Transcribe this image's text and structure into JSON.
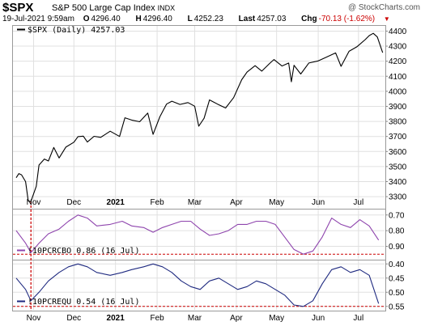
{
  "header": {
    "symbol": "$SPX",
    "name": "S&P 500 Large Cap Index",
    "exchange": "INDX",
    "credit": "@ StockCharts.com",
    "date": "19-Jul-2021 9:59am",
    "open_label": "O",
    "open": "4296.40",
    "high_label": "H",
    "high": "4296.40",
    "low_label": "L",
    "low": "4252.23",
    "last_label": "Last",
    "last": "4257.03",
    "chg_label": "Chg",
    "chg": "-70.13 (-1.62%)",
    "chg_color": "#cc0000"
  },
  "chart_data": [
    {
      "type": "line",
      "legend": "$SPX (Daily) 4257.03",
      "color": "#000000",
      "ylim": [
        3220,
        4440
      ],
      "yticks": [
        3300,
        3400,
        3500,
        3600,
        3700,
        3800,
        3900,
        4000,
        4100,
        4200,
        4300,
        4400
      ],
      "x_months": [
        "Nov",
        "Dec",
        "2021",
        "Feb",
        "Mar",
        "Apr",
        "May",
        "Jun",
        "Jul"
      ],
      "series": [
        {
          "x": [
            "2020-10-19",
            "2020-10-21",
            "2020-10-23",
            "2020-10-26",
            "2020-10-28",
            "2020-10-30",
            "2020-11-03",
            "2020-11-05",
            "2020-11-09",
            "2020-11-12",
            "2020-11-16",
            "2020-11-20",
            "2020-11-25",
            "2020-12-01",
            "2020-12-04",
            "2020-12-08",
            "2020-12-11",
            "2020-12-16",
            "2020-12-21",
            "2020-12-28",
            "2021-01-04",
            "2021-01-08",
            "2021-01-13",
            "2021-01-19",
            "2021-01-25",
            "2021-01-29",
            "2021-02-03",
            "2021-02-08",
            "2021-02-12",
            "2021-02-18",
            "2021-02-24",
            "2021-03-01",
            "2021-03-04",
            "2021-03-08",
            "2021-03-12",
            "2021-03-18",
            "2021-03-24",
            "2021-03-30",
            "2021-04-05",
            "2021-04-09",
            "2021-04-15",
            "2021-04-20",
            "2021-04-26",
            "2021-04-29",
            "2021-05-05",
            "2021-05-10",
            "2021-05-12",
            "2021-05-14",
            "2021-05-19",
            "2021-05-25",
            "2021-06-01",
            "2021-06-07",
            "2021-06-14",
            "2021-06-18",
            "2021-06-24",
            "2021-06-30",
            "2021-07-06",
            "2021-07-09",
            "2021-07-12",
            "2021-07-15",
            "2021-07-19"
          ],
          "y": [
            3426,
            3453,
            3445,
            3400,
            3271,
            3269,
            3369,
            3510,
            3550,
            3537,
            3627,
            3557,
            3629,
            3662,
            3699,
            3702,
            3663,
            3701,
            3694,
            3735,
            3700,
            3824,
            3809,
            3798,
            3855,
            3714,
            3830,
            3915,
            3934,
            3913,
            3925,
            3901,
            3768,
            3821,
            3943,
            3915,
            3889,
            3958,
            4077,
            4128,
            4170,
            4134,
            4187,
            4211,
            4168,
            4188,
            4063,
            4173,
            4115,
            4188,
            4202,
            4226,
            4255,
            4166,
            4266,
            4297,
            4343,
            4370,
            4385,
            4361,
            4257
          ]
        }
      ]
    },
    {
      "type": "line",
      "legend": "!10PCRCBO 0.86 (16 Jul)",
      "color": "#8e44ad",
      "inverted": true,
      "ylim": [
        0.66,
        0.985
      ],
      "yticks": [
        "0.70",
        "0.80",
        "0.90"
      ],
      "threshold_color": "#cc0000",
      "series": [
        {
          "x": [
            "2020-10-19",
            "2020-10-26",
            "2020-10-30",
            "2020-11-05",
            "2020-11-12",
            "2020-11-20",
            "2020-11-27",
            "2020-12-04",
            "2020-12-11",
            "2020-12-18",
            "2020-12-28",
            "2021-01-06",
            "2021-01-13",
            "2021-01-22",
            "2021-01-29",
            "2021-02-05",
            "2021-02-12",
            "2021-02-19",
            "2021-02-26",
            "2021-03-05",
            "2021-03-12",
            "2021-03-19",
            "2021-03-26",
            "2021-04-02",
            "2021-04-09",
            "2021-04-16",
            "2021-04-23",
            "2021-04-30",
            "2021-05-07",
            "2021-05-14",
            "2021-05-21",
            "2021-05-28",
            "2021-06-04",
            "2021-06-11",
            "2021-06-18",
            "2021-06-25",
            "2021-07-02",
            "2021-07-09",
            "2021-07-16"
          ],
          "y": [
            0.8,
            0.88,
            0.94,
            0.88,
            0.82,
            0.79,
            0.74,
            0.7,
            0.72,
            0.77,
            0.76,
            0.74,
            0.77,
            0.78,
            0.81,
            0.78,
            0.76,
            0.74,
            0.74,
            0.79,
            0.83,
            0.82,
            0.8,
            0.76,
            0.76,
            0.74,
            0.74,
            0.76,
            0.84,
            0.92,
            0.95,
            0.93,
            0.84,
            0.72,
            0.76,
            0.78,
            0.73,
            0.77,
            0.86
          ]
        }
      ]
    },
    {
      "type": "line",
      "legend": "!10PCREQU 0.54 (16 Jul)",
      "color": "#1f2a80",
      "inverted": true,
      "ylim": [
        0.385,
        0.565
      ],
      "yticks": [
        "0.40",
        "0.45",
        "0.50",
        "0.55"
      ],
      "threshold_color": "#cc0000",
      "series": [
        {
          "x": [
            "2020-10-19",
            "2020-10-26",
            "2020-10-30",
            "2020-11-05",
            "2020-11-12",
            "2020-11-20",
            "2020-11-27",
            "2020-12-04",
            "2020-12-11",
            "2020-12-18",
            "2020-12-28",
            "2021-01-06",
            "2021-01-13",
            "2021-01-22",
            "2021-01-29",
            "2021-02-05",
            "2021-02-12",
            "2021-02-19",
            "2021-02-26",
            "2021-03-05",
            "2021-03-12",
            "2021-03-19",
            "2021-03-26",
            "2021-04-02",
            "2021-04-09",
            "2021-04-16",
            "2021-04-23",
            "2021-04-30",
            "2021-05-07",
            "2021-05-14",
            "2021-05-21",
            "2021-05-28",
            "2021-06-04",
            "2021-06-11",
            "2021-06-18",
            "2021-06-25",
            "2021-07-02",
            "2021-07-09",
            "2021-07-16"
          ],
          "y": [
            0.45,
            0.49,
            0.53,
            0.5,
            0.46,
            0.43,
            0.41,
            0.4,
            0.41,
            0.43,
            0.44,
            0.43,
            0.42,
            0.41,
            0.4,
            0.41,
            0.43,
            0.46,
            0.48,
            0.49,
            0.46,
            0.45,
            0.47,
            0.49,
            0.48,
            0.46,
            0.47,
            0.49,
            0.51,
            0.545,
            0.55,
            0.53,
            0.47,
            0.42,
            0.41,
            0.43,
            0.42,
            0.44,
            0.54
          ]
        }
      ]
    }
  ]
}
